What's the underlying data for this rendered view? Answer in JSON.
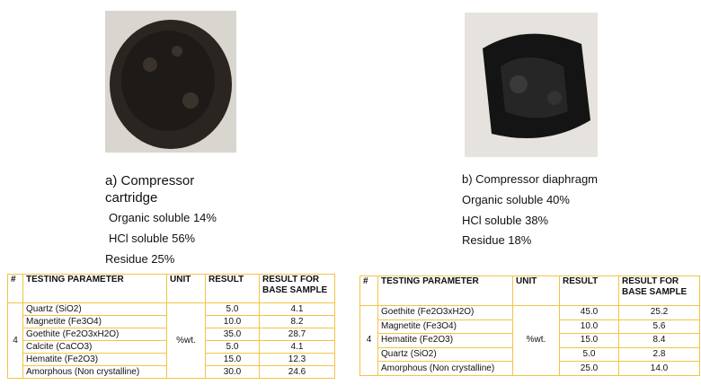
{
  "panels": [
    {
      "caption": "a) Compressor cartridge",
      "lines": [
        "Organic soluble 14%",
        "HCl soluble 56%",
        "Residue 25%"
      ],
      "table": {
        "headers": [
          "#",
          "TESTING PARAMETER",
          "UNIT",
          "RESULT",
          "RESULT FOR BASE SAMPLE"
        ],
        "group": "4",
        "unit": "%wt.",
        "rows": [
          [
            "Quartz (SiO2)",
            "5.0",
            "4.1"
          ],
          [
            "Magnetite (Fe3O4)",
            "10.0",
            "8.2"
          ],
          [
            "Goethite (Fe2O3xH2O)",
            "35.0",
            "28.7"
          ],
          [
            "Calcite (CaCO3)",
            "5.0",
            "4.1"
          ],
          [
            "Hematite (Fe2O3)",
            "15.0",
            "12.3"
          ],
          [
            "Amorphous (Non crystalline)",
            "30.0",
            "24.6"
          ]
        ]
      }
    },
    {
      "caption": "b) Compressor diaphragm",
      "lines": [
        "Organic soluble 40%",
        "HCl soluble 38%",
        "Residue 18%"
      ],
      "table": {
        "headers": [
          "#",
          "TESTING PARAMETER",
          "UNIT",
          "RESULT",
          "RESULT FOR BASE SAMPLE"
        ],
        "group": "4",
        "unit": "%wt.",
        "rows": [
          [
            "Goethite (Fe2O3xH2O)",
            "45.0",
            "25.2"
          ],
          [
            "Magnetite (Fe3O4)",
            "10.0",
            "5.6"
          ],
          [
            "Hematite (Fe2O3)",
            "15.0",
            "8.4"
          ],
          [
            "Quartz (SiO2)",
            "5.0",
            "2.8"
          ],
          [
            "Amorphous (Non crystalline)",
            "25.0",
            "14.0"
          ]
        ]
      }
    }
  ]
}
